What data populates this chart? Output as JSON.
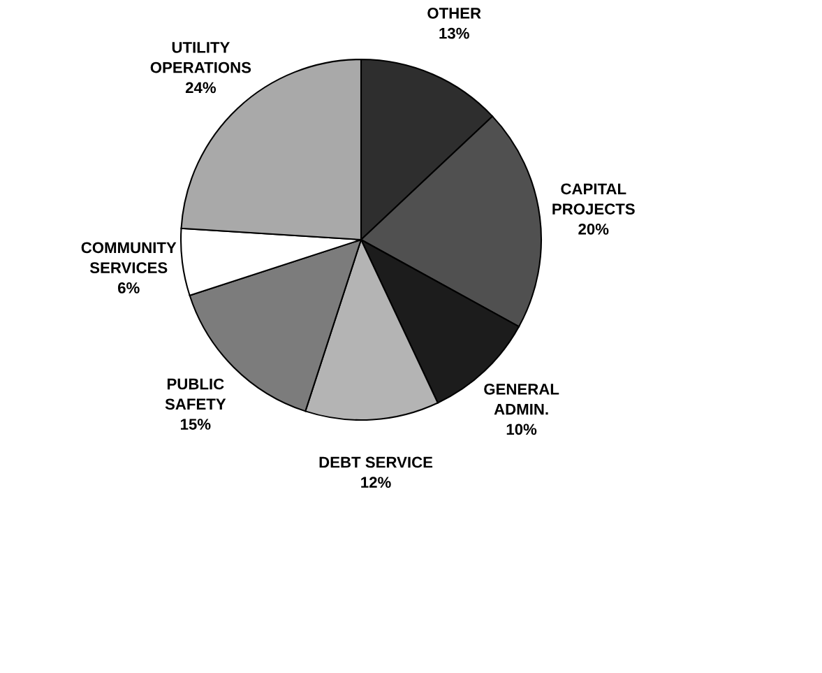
{
  "chart_data": {
    "type": "pie",
    "categories": [
      "OTHER",
      "CAPITAL\nPROJECTS",
      "GENERAL\nADMIN.",
      "DEBT SERVICE",
      "PUBLIC\nSAFETY",
      "COMMUNITY\nSERVICES",
      "UTILITY\nOPERATIONS"
    ],
    "values": [
      13,
      20,
      10,
      12,
      15,
      6,
      24
    ],
    "value_labels": [
      "13%",
      "20%",
      "10%",
      "12%",
      "15%",
      "6%",
      "24%"
    ],
    "colors": [
      "#2e2e2e",
      "#505050",
      "#1c1c1c",
      "#b4b4b4",
      "#7c7c7c",
      "#ffffff",
      "#a9a9a9"
    ]
  }
}
